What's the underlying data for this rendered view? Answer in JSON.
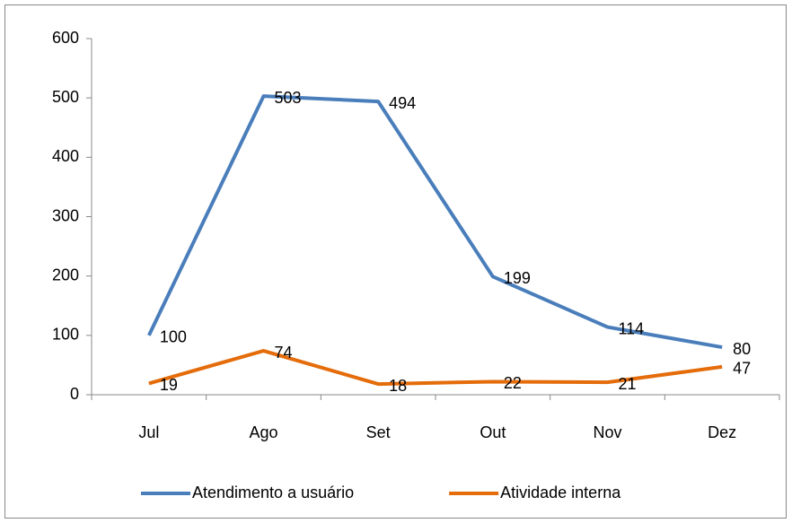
{
  "chart_data": {
    "type": "line",
    "categories": [
      "Jul",
      "Ago",
      "Set",
      "Out",
      "Nov",
      "Dez"
    ],
    "series": [
      {
        "name": "Atendimento a usuário",
        "color": "#4a7ebb",
        "values": [
          100,
          503,
          494,
          199,
          114,
          80
        ]
      },
      {
        "name": "Atividade interna",
        "color": "#e46c0a",
        "values": [
          19,
          74,
          18,
          22,
          21,
          47
        ]
      }
    ],
    "ylim": [
      0,
      600
    ],
    "yticks": [
      0,
      100,
      200,
      300,
      400,
      500,
      600
    ],
    "grid": false,
    "legend": "bottom"
  }
}
